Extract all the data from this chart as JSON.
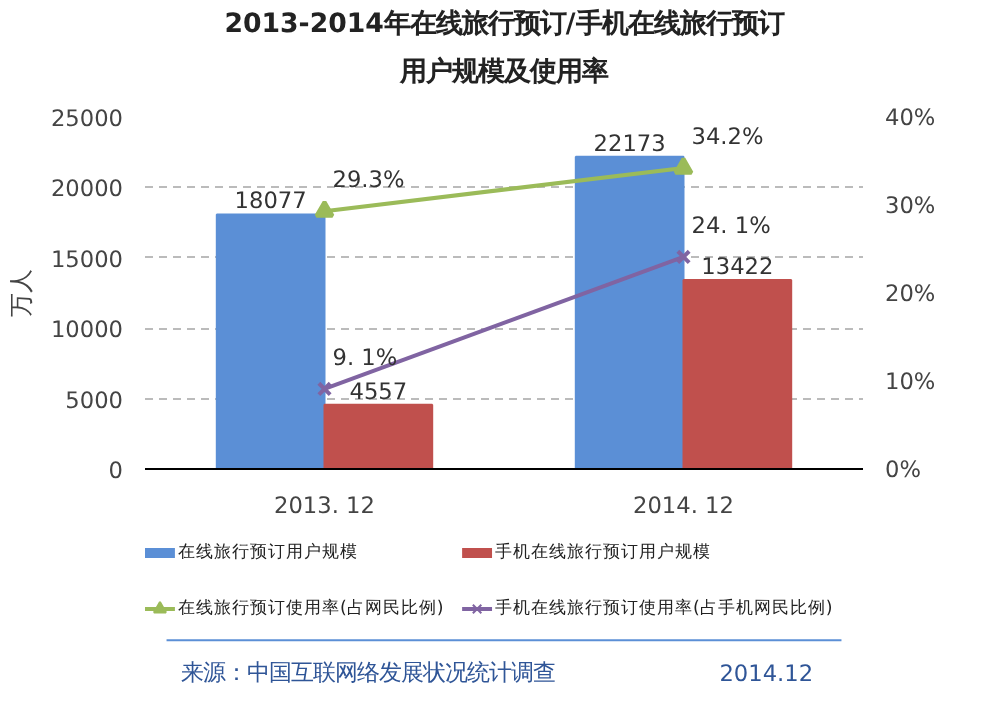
{
  "chart_data": {
    "type": "bar",
    "title": "2013-2014年在线旅行预订/手机在线旅行预订用户规模及使用率",
    "ylabel": "万人",
    "categories": [
      "2013. 12",
      "2014. 12"
    ],
    "series": [
      {
        "name": "在线旅行预订用户规模",
        "color": "#5b8fd6",
        "values": [
          18077,
          22173
        ],
        "value_labels": [
          "18077",
          "22173"
        ]
      },
      {
        "name": "手机在线旅行预订用户规模",
        "color": "#c0504d",
        "values": [
          4557,
          13422
        ],
        "value_labels": [
          "4557",
          "13422"
        ]
      },
      {
        "name": "在线旅行预订使用率(占网民比例)",
        "type": "line",
        "axis": "y2",
        "marker": "triangle",
        "color": "#9bbb59",
        "values": [
          29.3,
          34.2
        ],
        "value_labels": [
          "29.3%",
          "34.2%"
        ]
      },
      {
        "name": "手机在线旅行预订使用率(占手机网民比例)",
        "type": "line",
        "axis": "y2",
        "marker": "cross",
        "color": "#8064a2",
        "values": [
          9.1,
          24.1
        ],
        "value_labels": [
          "9. 1%",
          "24. 1%"
        ]
      }
    ],
    "ylim": [
      0,
      25000
    ],
    "yticks": [
      0,
      5000,
      10000,
      15000,
      20000,
      25000
    ],
    "y2lim": [
      0,
      40
    ],
    "y2ticks": [
      {
        "value": 0,
        "label": "0%"
      },
      {
        "value": 10,
        "label": "10%"
      },
      {
        "value": 20,
        "label": "20%"
      },
      {
        "value": 30,
        "label": "30%"
      },
      {
        "value": 40,
        "label": "40%"
      }
    ],
    "grid": "y",
    "legend": "bottom",
    "annotations": [
      "来源：中国互联网络发展状况统计调查",
      "2014.12"
    ]
  }
}
